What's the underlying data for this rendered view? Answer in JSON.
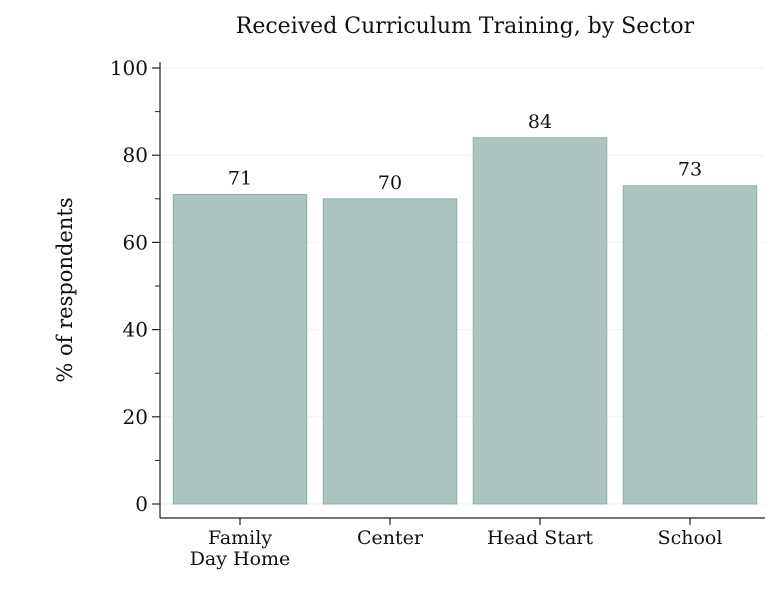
{
  "chart_data": {
    "type": "bar",
    "title": "Received Curriculum Training, by Sector",
    "y_label": "% of respondents",
    "categories": [
      "Family\nDay Home",
      "Center",
      "Head Start",
      "School"
    ],
    "values": [
      71,
      70,
      84,
      73
    ],
    "color": "#abc4bf",
    "ylim": [
      0,
      100
    ],
    "yticks": [
      0,
      20,
      40,
      60,
      80,
      100
    ],
    "yminorticks": [
      10,
      30,
      50,
      70,
      90
    ],
    "grid": true
  }
}
